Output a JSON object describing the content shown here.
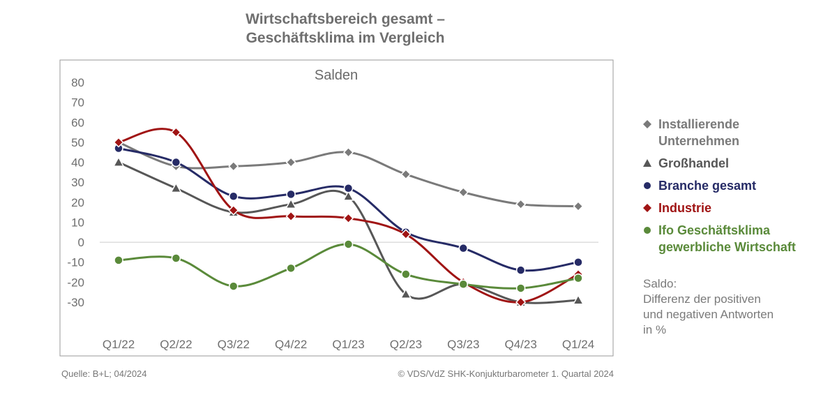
{
  "chart_data": {
    "type": "line",
    "title": [
      "Wirtschaftsbereich gesamt –",
      "Geschäftsklima im Vergleich"
    ],
    "subtitle": "Salden",
    "categories": [
      "Q1/22",
      "Q2/22",
      "Q3/22",
      "Q4/22",
      "Q1/23",
      "Q2/23",
      "Q3/23",
      "Q4/23",
      "Q1/24"
    ],
    "y_ticks": [
      "80",
      "70",
      "60",
      "50",
      "40",
      "30",
      "20",
      "10",
      "0",
      "-10",
      "-20",
      "-30"
    ],
    "ylim": [
      -30,
      80
    ],
    "grid": false,
    "zero_line": true,
    "legend_position": "right",
    "series": [
      {
        "name": [
          "Installierende",
          "Unternehmen"
        ],
        "marker": "diamond",
        "color": "#7a7a7a",
        "values": [
          50,
          38,
          38,
          40,
          45,
          34,
          25,
          19,
          18
        ]
      },
      {
        "name": [
          "Großhandel"
        ],
        "marker": "triangle",
        "color": "#575757",
        "values": [
          40,
          27,
          15,
          19,
          23,
          -26,
          -21,
          -30,
          -29
        ]
      },
      {
        "name": [
          "Branche gesamt"
        ],
        "marker": "circle",
        "color": "#262b66",
        "values": [
          47,
          40,
          23,
          24,
          27,
          5,
          -3,
          -14,
          -10
        ]
      },
      {
        "name": [
          "Industrie"
        ],
        "marker": "diamond",
        "color": "#a01414",
        "values": [
          50,
          55,
          16,
          13,
          12,
          4,
          -20,
          -30,
          -16
        ]
      },
      {
        "name": [
          "Ifo Geschäftsklima",
          "gewerbliche Wirtschaft"
        ],
        "marker": "circle",
        "color": "#5a8a3a",
        "values": [
          -9,
          -8,
          -22,
          -13,
          -1,
          -16,
          -21,
          -23,
          -18
        ]
      }
    ]
  },
  "note": [
    "Saldo:",
    "Differenz der positiven",
    "und negativen Antworten",
    "in %"
  ],
  "footer": {
    "source": "Quelle: B+L; 04/2024",
    "copyright": "© VDS/VdZ SHK-Konjukturbarometer 1. Quartal 2024"
  }
}
